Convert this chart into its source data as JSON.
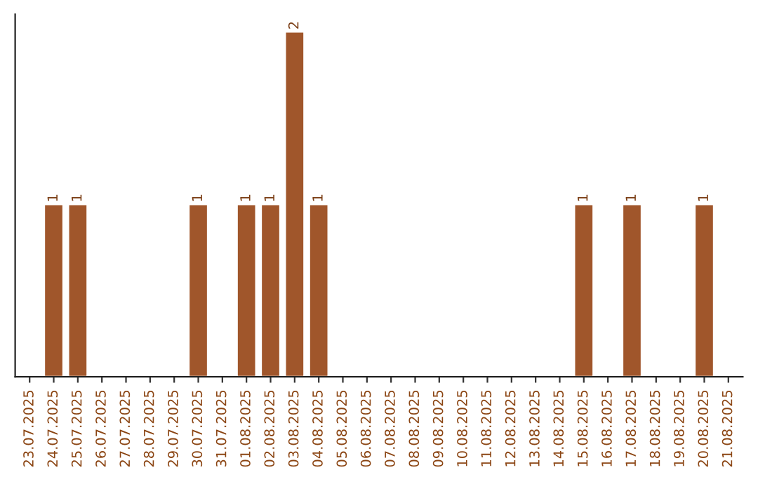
{
  "chart_data": {
    "type": "bar",
    "categories": [
      "23.07.2025",
      "24.07.2025",
      "25.07.2025",
      "26.07.2025",
      "27.07.2025",
      "28.07.2025",
      "29.07.2025",
      "30.07.2025",
      "31.07.2025",
      "01.08.2025",
      "02.08.2025",
      "03.08.2025",
      "04.08.2025",
      "05.08.2025",
      "06.08.2025",
      "07.08.2025",
      "08.08.2025",
      "09.08.2025",
      "10.08.2025",
      "11.08.2025",
      "12.08.2025",
      "13.08.2025",
      "14.08.2025",
      "15.08.2025",
      "16.08.2025",
      "17.08.2025",
      "18.08.2025",
      "19.08.2025",
      "20.08.2025",
      "21.08.2025"
    ],
    "values": [
      null,
      1,
      1,
      null,
      null,
      null,
      null,
      1,
      null,
      1,
      1,
      2,
      1,
      null,
      null,
      null,
      null,
      null,
      null,
      null,
      null,
      null,
      null,
      1,
      null,
      1,
      null,
      null,
      1,
      null
    ],
    "value_labels": [
      null,
      "1",
      "1",
      null,
      null,
      null,
      null,
      "1",
      null,
      "1",
      "1",
      "2",
      "1",
      null,
      null,
      null,
      null,
      null,
      null,
      null,
      null,
      null,
      null,
      "1",
      null,
      "1",
      null,
      null,
      "1",
      null
    ],
    "color": "#a0562b",
    "grid": false,
    "legend": false
  }
}
